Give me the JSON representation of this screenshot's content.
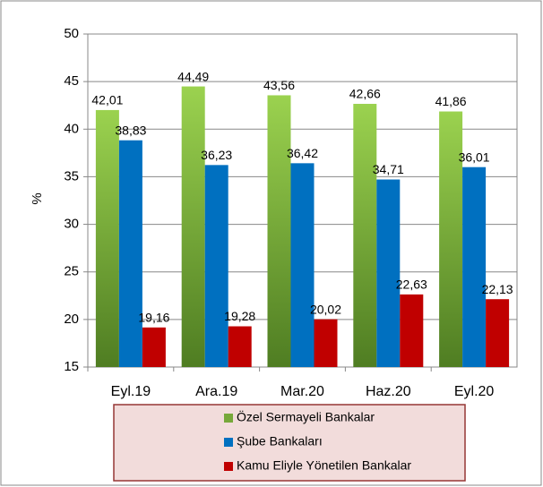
{
  "chart_data": {
    "type": "bar",
    "y_label": "%",
    "categories": [
      "Eyl.19",
      "Ara.19",
      "Mar.20",
      "Haz.20",
      "Eyl.20"
    ],
    "series": [
      {
        "name": "Özel Sermayeli Bankalar",
        "color": "#77a83a",
        "values": [
          42.01,
          44.49,
          43.56,
          42.66,
          41.86
        ],
        "value_labels": [
          "42,01",
          "44,49",
          "43,56",
          "42,66",
          "41,86"
        ]
      },
      {
        "name": "Şube Bankaları",
        "color": "#0070c0",
        "values": [
          38.83,
          36.23,
          36.42,
          34.71,
          36.01
        ],
        "value_labels": [
          "38,83",
          "36,23",
          "36,42",
          "34,71",
          "36,01"
        ]
      },
      {
        "name": "Kamu Eliyle Yönetilen Bankalar",
        "color": "#c00000",
        "values": [
          19.16,
          19.28,
          20.02,
          22.63,
          22.13
        ],
        "value_labels": [
          "19,16",
          "19,28",
          "20,02",
          "22,63",
          "22,13"
        ]
      }
    ],
    "ylim": [
      15,
      50
    ],
    "yticks": [
      15,
      20,
      25,
      30,
      35,
      40,
      45,
      50
    ],
    "grid": true,
    "legend": "bottom"
  }
}
